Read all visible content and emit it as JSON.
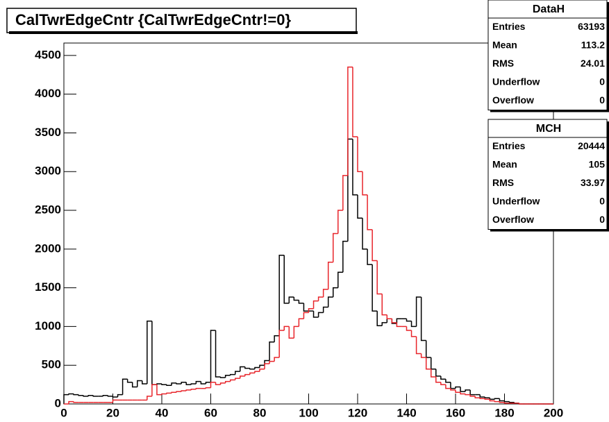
{
  "chart_data": {
    "type": "histogram",
    "title": "CalTwrEdgeCntr {CalTwrEdgeCntr!=0}",
    "bins": [
      0,
      2,
      4,
      6,
      8,
      10,
      12,
      14,
      16,
      18,
      20,
      22,
      24,
      26,
      28,
      30,
      32,
      34,
      36,
      38,
      40,
      42,
      44,
      46,
      48,
      50,
      52,
      54,
      56,
      58,
      60,
      62,
      64,
      66,
      68,
      70,
      72,
      74,
      76,
      78,
      80,
      82,
      84,
      86,
      88,
      90,
      92,
      94,
      96,
      98,
      100,
      102,
      104,
      106,
      108,
      110,
      112,
      114,
      116,
      118,
      120,
      122,
      124,
      126,
      128,
      130,
      132,
      134,
      136,
      138,
      140,
      142,
      144,
      146,
      148,
      150,
      152,
      154,
      156,
      158,
      160,
      162,
      164,
      166,
      168,
      170,
      172,
      174,
      176,
      178,
      180,
      182,
      184,
      186,
      188,
      190,
      192,
      194,
      196,
      198,
      200
    ],
    "series": [
      {
        "name": "DataH",
        "color": "#000000",
        "values": [
          120,
          130,
          120,
          110,
          100,
          110,
          100,
          100,
          110,
          100,
          90,
          120,
          320,
          280,
          220,
          300,
          260,
          1070,
          250,
          260,
          250,
          240,
          270,
          260,
          280,
          250,
          260,
          290,
          260,
          280,
          950,
          350,
          340,
          370,
          380,
          420,
          480,
          460,
          450,
          470,
          500,
          560,
          800,
          880,
          1920,
          1300,
          1380,
          1340,
          1300,
          1200,
          1200,
          1120,
          1180,
          1250,
          1380,
          1500,
          1700,
          2100,
          3420,
          2700,
          2400,
          2000,
          1800,
          1200,
          1010,
          1050,
          1100,
          1040,
          1100,
          1100,
          1070,
          1000,
          1380,
          820,
          600,
          450,
          360,
          320,
          280,
          200,
          220,
          160,
          180,
          120,
          120,
          90,
          80,
          60,
          70,
          40,
          30,
          20,
          10,
          0,
          0,
          0,
          0,
          0,
          0,
          0
        ]
      },
      {
        "name": "MCH",
        "color": "#e8242a",
        "values": [
          0,
          30,
          20,
          20,
          20,
          20,
          20,
          20,
          20,
          20,
          50,
          50,
          50,
          50,
          50,
          50,
          50,
          100,
          250,
          120,
          130,
          140,
          150,
          160,
          170,
          180,
          190,
          200,
          200,
          210,
          280,
          250,
          270,
          290,
          310,
          330,
          360,
          380,
          400,
          420,
          450,
          520,
          550,
          600,
          950,
          1000,
          850,
          1000,
          1100,
          1180,
          1230,
          1330,
          1380,
          1480,
          1830,
          2200,
          2500,
          2950,
          4350,
          3450,
          3000,
          2700,
          2250,
          1850,
          1420,
          1150,
          1100,
          1050,
          1000,
          1000,
          950,
          870,
          650,
          600,
          450,
          350,
          280,
          250,
          200,
          180,
          150,
          130,
          120,
          100,
          80,
          70,
          60,
          40,
          30,
          20,
          10,
          10,
          10,
          0,
          0,
          0,
          0,
          0,
          0,
          0
        ]
      }
    ],
    "xlim": [
      0,
      200
    ],
    "ylim": [
      0,
      4660
    ],
    "xticks": [
      0,
      20,
      40,
      60,
      80,
      100,
      120,
      140,
      160,
      180,
      200
    ],
    "yticks": [
      0,
      500,
      1000,
      1500,
      2000,
      2500,
      3000,
      3500,
      4000,
      4500
    ],
    "stats": [
      {
        "title": "DataH",
        "rows": [
          [
            "Entries",
            "63193"
          ],
          [
            "Mean",
            "113.2"
          ],
          [
            "RMS",
            "24.01"
          ],
          [
            "Underflow",
            "0"
          ],
          [
            "Overflow",
            "0"
          ]
        ]
      },
      {
        "title": "MCH",
        "rows": [
          [
            "Entries",
            "20444"
          ],
          [
            "Mean",
            "105"
          ],
          [
            "RMS",
            "33.97"
          ],
          [
            "Underflow",
            "0"
          ],
          [
            "Overflow",
            "0"
          ]
        ]
      }
    ]
  }
}
